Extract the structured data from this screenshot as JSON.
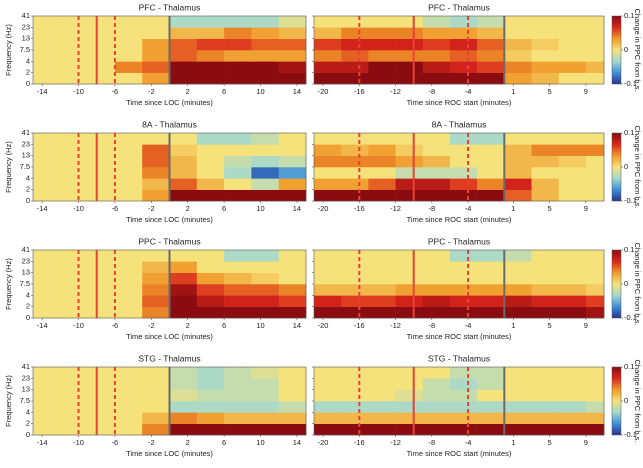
{
  "colormap": [
    "#27318f",
    "#3f8fd6",
    "#a4d9cf",
    "#f6e27a",
    "#f09a2a",
    "#d9261c",
    "#8a0c10"
  ],
  "chart_data": [
    {
      "type": "heatmap",
      "title": "PFC - Thalamus",
      "xlabel": "Time since LOC (minutes)",
      "ylabel": "Frequency (Hz)",
      "xlim": [
        -15,
        15
      ],
      "xticks": [
        -14,
        -10,
        -6,
        -2,
        2,
        6,
        10,
        14
      ],
      "yticks": [
        0,
        2,
        4,
        7.5,
        13,
        23,
        41
      ],
      "show_ytick_labels": true,
      "x_bins": [
        -15,
        -12,
        -9,
        -6,
        -3,
        0,
        3,
        6,
        9,
        12,
        15
      ],
      "clim": [
        -0.1,
        0.1
      ],
      "markers": [
        {
          "x": -10,
          "color": "#e8413a",
          "dash": true
        },
        {
          "x": -8,
          "color": "#e8413a",
          "dash": false
        },
        {
          "x": -6,
          "color": "#e8413a",
          "dash": true
        },
        {
          "x": 0,
          "color": "#6b6b6b",
          "dash": false
        }
      ],
      "values": [
        [
          0,
          0,
          0,
          0,
          0.03,
          0.1,
          0.1,
          0.1,
          0.1,
          0.1
        ],
        [
          0,
          0,
          0,
          0.04,
          0.05,
          0.1,
          0.1,
          0.1,
          0.1,
          0.09
        ],
        [
          0,
          0,
          0,
          0,
          0.03,
          0.05,
          0.04,
          0.03,
          0.03,
          0.03
        ],
        [
          0,
          0,
          0,
          0,
          0.03,
          0.05,
          0.06,
          0.06,
          0.05,
          0.05
        ],
        [
          0,
          0,
          0,
          0,
          0,
          0.02,
          0.02,
          0.04,
          0.03,
          0.02
        ],
        [
          0,
          0,
          0,
          0,
          0,
          -0.03,
          -0.03,
          -0.03,
          -0.03,
          -0.01
        ]
      ]
    },
    {
      "type": "heatmap",
      "title": "PFC - Thalamus",
      "xlabel": "Time since ROC start (minutes)",
      "xlim": [
        -21,
        11
      ],
      "xticks": [
        -20,
        -16,
        -12,
        -8,
        -4,
        1,
        5,
        9
      ],
      "yticks": [
        0,
        2,
        4,
        7.5,
        13,
        23,
        41
      ],
      "show_ytick_labels": false,
      "x_bins": [
        -21,
        -18,
        -15,
        -12,
        -9,
        -6,
        -3,
        0,
        3,
        6,
        9,
        11
      ],
      "clim": [
        -0.1,
        0.1
      ],
      "markers": [
        {
          "x": -16,
          "color": "#e8413a",
          "dash": true
        },
        {
          "x": -10,
          "color": "#e8413a",
          "dash": false
        },
        {
          "x": -4,
          "color": "#e8413a",
          "dash": true
        },
        {
          "x": 0,
          "color": "#6b6b6b",
          "dash": false
        }
      ],
      "colorbar": {
        "label": "Change in PPC from b.s.",
        "ticks": [
          0.1,
          0,
          -0.1
        ]
      },
      "values": [
        [
          0.1,
          0.1,
          0.1,
          0.1,
          0.1,
          0.1,
          0.1,
          0.03,
          0.02,
          0,
          0
        ],
        [
          0.08,
          0.08,
          0.1,
          0.1,
          0.08,
          0.07,
          0.06,
          0.04,
          0.03,
          0.03,
          0.02
        ],
        [
          0.04,
          0.05,
          0.04,
          0.04,
          0.04,
          0.05,
          0.04,
          0.01,
          0,
          0,
          0
        ],
        [
          0.06,
          0.07,
          0.07,
          0.07,
          0.06,
          0.07,
          0.05,
          0.02,
          0.01,
          0,
          0
        ],
        [
          0.02,
          0.04,
          0.04,
          0.04,
          0.03,
          0.03,
          0.02,
          0,
          0,
          0,
          0
        ],
        [
          0,
          0,
          0,
          0,
          -0.02,
          -0.03,
          -0.02,
          0,
          0,
          0,
          0
        ]
      ]
    },
    {
      "type": "heatmap",
      "title": "8A - Thalamus",
      "xlabel": "Time since LOC (minutes)",
      "ylabel": "Frequency (Hz)",
      "xlim": [
        -15,
        15
      ],
      "xticks": [
        -14,
        -10,
        -6,
        -2,
        2,
        6,
        10,
        14
      ],
      "yticks": [
        0,
        2,
        4,
        7.5,
        13,
        23,
        41
      ],
      "show_ytick_labels": true,
      "x_bins": [
        -15,
        -12,
        -9,
        -6,
        -3,
        0,
        3,
        6,
        9,
        12,
        15
      ],
      "clim": [
        -0.1,
        0.1
      ],
      "markers": [
        {
          "x": -10,
          "color": "#e8413a",
          "dash": true
        },
        {
          "x": -8,
          "color": "#e8413a",
          "dash": false
        },
        {
          "x": -6,
          "color": "#e8413a",
          "dash": true
        },
        {
          "x": 0,
          "color": "#6b6b6b",
          "dash": false
        }
      ],
      "values": [
        [
          0,
          0,
          0,
          0,
          0.03,
          0.1,
          0.1,
          0.1,
          0.1,
          0.1
        ],
        [
          0,
          0,
          0,
          0,
          0.02,
          0.05,
          0.02,
          0,
          -0.02,
          0.03
        ],
        [
          0,
          0,
          0,
          0,
          0.04,
          0.02,
          0,
          -0.03,
          -0.08,
          -0.06
        ],
        [
          0,
          0,
          0,
          0,
          0.05,
          0.02,
          0,
          -0.02,
          -0.03,
          -0.02
        ],
        [
          0,
          0,
          0,
          0,
          0.05,
          0.01,
          0,
          0,
          0,
          0
        ],
        [
          0,
          0,
          0,
          0,
          0,
          0,
          -0.03,
          -0.03,
          -0.02,
          0
        ]
      ]
    },
    {
      "type": "heatmap",
      "title": "8A - Thalamus",
      "xlabel": "Time since ROC start (minutes)",
      "xlim": [
        -21,
        11
      ],
      "xticks": [
        -20,
        -16,
        -12,
        -8,
        -4,
        1,
        5,
        9
      ],
      "yticks": [
        0,
        2,
        4,
        7.5,
        13,
        23,
        41
      ],
      "show_ytick_labels": false,
      "x_bins": [
        -21,
        -18,
        -15,
        -12,
        -9,
        -6,
        -3,
        0,
        3,
        6,
        9,
        11
      ],
      "clim": [
        -0.1,
        0.1
      ],
      "markers": [
        {
          "x": -16,
          "color": "#e8413a",
          "dash": true
        },
        {
          "x": -10,
          "color": "#e8413a",
          "dash": false
        },
        {
          "x": -4,
          "color": "#e8413a",
          "dash": true
        },
        {
          "x": 0,
          "color": "#6b6b6b",
          "dash": false
        }
      ],
      "colorbar": {
        "label": "Change in PPC from b.s.",
        "ticks": [
          0.1,
          0,
          -0.1
        ]
      },
      "values": [
        [
          0.1,
          0.1,
          0.1,
          0.1,
          0.1,
          0.1,
          0.1,
          0.05,
          0.02,
          0,
          0
        ],
        [
          0.03,
          0.03,
          0.05,
          0.08,
          0.08,
          0.06,
          0.04,
          0.07,
          0.02,
          0,
          0
        ],
        [
          0,
          0,
          0,
          -0.02,
          -0.02,
          -0.02,
          0,
          0.02,
          0,
          0,
          0
        ],
        [
          0.04,
          0.04,
          0.04,
          0.03,
          0.02,
          0,
          0,
          0.02,
          0.02,
          0.01,
          0
        ],
        [
          0.03,
          0.02,
          0.03,
          0.01,
          0,
          0,
          0,
          0.02,
          0.04,
          0.04,
          0.04
        ],
        [
          0,
          0,
          0,
          0,
          0,
          -0.03,
          -0.03,
          0,
          0,
          0,
          0
        ]
      ]
    },
    {
      "type": "heatmap",
      "title": "PPC - Thalamus",
      "xlabel": "Time since LOC (minutes)",
      "ylabel": "Frequency (Hz)",
      "xlim": [
        -15,
        15
      ],
      "xticks": [
        -14,
        -10,
        -6,
        -2,
        2,
        6,
        10,
        14
      ],
      "yticks": [
        0,
        2,
        4,
        7.5,
        13,
        23,
        41
      ],
      "show_ytick_labels": true,
      "x_bins": [
        -15,
        -12,
        -9,
        -6,
        -3,
        0,
        3,
        6,
        9,
        12,
        15
      ],
      "clim": [
        -0.1,
        0.1
      ],
      "markers": [
        {
          "x": -10,
          "color": "#e8413a",
          "dash": true
        },
        {
          "x": -8,
          "color": "#e8413a",
          "dash": false
        },
        {
          "x": -6,
          "color": "#e8413a",
          "dash": true
        },
        {
          "x": 0,
          "color": "#6b6b6b",
          "dash": false
        }
      ],
      "values": [
        [
          0,
          0,
          0,
          0,
          0.04,
          0.1,
          0.1,
          0.1,
          0.1,
          0.1
        ],
        [
          0,
          0,
          0,
          0,
          0.05,
          0.1,
          0.08,
          0.07,
          0.07,
          0.06
        ],
        [
          0,
          0,
          0,
          0,
          0.04,
          0.09,
          0.06,
          0.05,
          0.05,
          0.04
        ],
        [
          0,
          0,
          0,
          0,
          0.03,
          0.06,
          0.03,
          0.02,
          0.01,
          0
        ],
        [
          0,
          0,
          0,
          0,
          0.02,
          0.03,
          0,
          0,
          0,
          0
        ],
        [
          0,
          0,
          0,
          0,
          0,
          0,
          0,
          -0.03,
          -0.03,
          0
        ]
      ]
    },
    {
      "type": "heatmap",
      "title": "PPC - Thalamus",
      "xlabel": "Time since ROC start (minutes)",
      "xlim": [
        -21,
        11
      ],
      "xticks": [
        -20,
        -16,
        -12,
        -8,
        -4,
        1,
        5,
        9
      ],
      "yticks": [
        0,
        2,
        4,
        7.5,
        13,
        23,
        41
      ],
      "show_ytick_labels": false,
      "x_bins": [
        -21,
        -18,
        -15,
        -12,
        -9,
        -6,
        -3,
        0,
        3,
        6,
        9,
        11
      ],
      "clim": [
        -0.1,
        0.1
      ],
      "markers": [
        {
          "x": -16,
          "color": "#e8413a",
          "dash": true
        },
        {
          "x": -10,
          "color": "#e8413a",
          "dash": false
        },
        {
          "x": -4,
          "color": "#e8413a",
          "dash": true
        },
        {
          "x": 0,
          "color": "#6b6b6b",
          "dash": false
        }
      ],
      "colorbar": {
        "label": "Change in PPC from b.s.",
        "ticks": [
          0.1,
          0,
          -0.1
        ]
      },
      "values": [
        [
          0.1,
          0.1,
          0.1,
          0.1,
          0.1,
          0.1,
          0.1,
          0.1,
          0.1,
          0.1,
          0.09
        ],
        [
          0.07,
          0.06,
          0.06,
          0.07,
          0.08,
          0.07,
          0.07,
          0.08,
          0.07,
          0.07,
          0.06
        ],
        [
          0.02,
          0.02,
          0.02,
          0.03,
          0.03,
          0.03,
          0.03,
          0.03,
          0.02,
          0.02,
          0.01
        ],
        [
          0,
          0,
          0,
          0,
          0,
          0,
          0,
          0,
          0,
          0,
          0
        ],
        [
          0,
          0,
          0,
          0,
          0,
          0,
          0,
          0,
          0,
          0,
          0
        ],
        [
          0,
          0,
          0,
          0,
          0,
          -0.03,
          -0.03,
          -0.02,
          0,
          0,
          0
        ]
      ]
    },
    {
      "type": "heatmap",
      "title": "STG - Thalamus",
      "xlabel": "Time since LOC (minutes)",
      "ylabel": "Frequency (Hz)",
      "xlim": [
        -15,
        15
      ],
      "xticks": [
        -14,
        -10,
        -6,
        -2,
        2,
        6,
        10,
        14
      ],
      "yticks": [
        0,
        2,
        4,
        7.5,
        13,
        23,
        41
      ],
      "show_ytick_labels": true,
      "x_bins": [
        -15,
        -12,
        -9,
        -6,
        -3,
        0,
        3,
        6,
        9,
        12,
        15
      ],
      "clim": [
        -0.1,
        0.1
      ],
      "markers": [
        {
          "x": -10,
          "color": "#e8413a",
          "dash": true
        },
        {
          "x": -8,
          "color": "#e8413a",
          "dash": false
        },
        {
          "x": -6,
          "color": "#e8413a",
          "dash": true
        },
        {
          "x": 0,
          "color": "#6b6b6b",
          "dash": false
        }
      ],
      "values": [
        [
          0,
          0,
          0,
          0,
          0.04,
          0.1,
          0.1,
          0.1,
          0.1,
          0.1
        ],
        [
          0,
          0,
          0,
          0,
          0.02,
          0.04,
          0.03,
          0.02,
          0.02,
          0.02
        ],
        [
          0,
          0,
          0,
          0,
          0,
          -0.03,
          -0.03,
          -0.03,
          -0.03,
          -0.02
        ],
        [
          0,
          0,
          0,
          0,
          0,
          -0.01,
          -0.02,
          -0.02,
          -0.02,
          0
        ],
        [
          0,
          0,
          0,
          0,
          0,
          -0.02,
          -0.03,
          -0.02,
          -0.02,
          0
        ],
        [
          0,
          0,
          0,
          0,
          0,
          -0.02,
          -0.03,
          -0.02,
          -0.01,
          0
        ]
      ]
    },
    {
      "type": "heatmap",
      "title": "STG - Thalamus",
      "xlabel": "Time since ROC start (minutes)",
      "xlim": [
        -21,
        11
      ],
      "xticks": [
        -20,
        -16,
        -12,
        -8,
        -4,
        1,
        5,
        9
      ],
      "yticks": [
        0,
        2,
        4,
        7.5,
        13,
        23,
        41
      ],
      "show_ytick_labels": false,
      "x_bins": [
        -21,
        -18,
        -15,
        -12,
        -9,
        -6,
        -3,
        0,
        3,
        6,
        9,
        11
      ],
      "clim": [
        -0.1,
        0.1
      ],
      "markers": [
        {
          "x": -16,
          "color": "#e8413a",
          "dash": true
        },
        {
          "x": -10,
          "color": "#e8413a",
          "dash": false
        },
        {
          "x": -4,
          "color": "#e8413a",
          "dash": true
        },
        {
          "x": 0,
          "color": "#6b6b6b",
          "dash": false
        }
      ],
      "colorbar": {
        "label": "Change in PPC from b.s.",
        "ticks": [
          0.1,
          0,
          -0.1
        ]
      },
      "values": [
        [
          0.1,
          0.1,
          0.1,
          0.1,
          0.1,
          0.1,
          0.1,
          0.1,
          0.1,
          0.1,
          0.1
        ],
        [
          0.02,
          0.02,
          0.02,
          0.02,
          0.02,
          0.02,
          0.02,
          0.02,
          0.02,
          0.02,
          0.02
        ],
        [
          -0.03,
          -0.03,
          -0.03,
          -0.03,
          -0.03,
          -0.03,
          -0.03,
          -0.03,
          -0.03,
          -0.03,
          -0.02
        ],
        [
          0,
          0,
          0,
          -0.01,
          -0.02,
          -0.02,
          0,
          0,
          0,
          0,
          0
        ],
        [
          0,
          0,
          0,
          0,
          -0.02,
          -0.03,
          -0.02,
          0,
          0,
          0,
          0
        ],
        [
          0,
          0,
          0,
          0,
          0,
          -0.02,
          -0.02,
          0,
          0,
          0,
          0
        ]
      ]
    }
  ]
}
